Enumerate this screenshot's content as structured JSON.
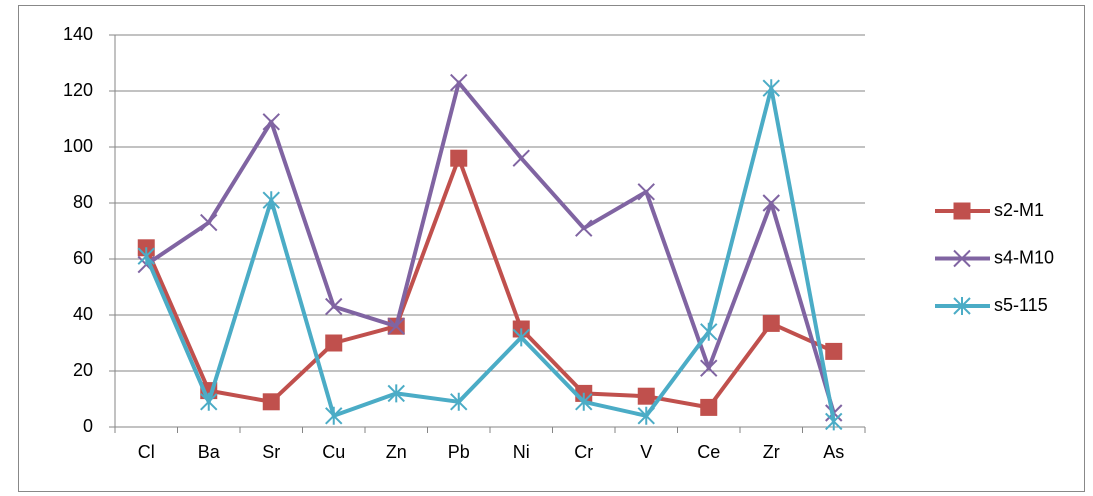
{
  "chart_data": {
    "type": "line",
    "categories": [
      "Cl",
      "Ba",
      "Sr",
      "Cu",
      "Zn",
      "Pb",
      "Ni",
      "Cr",
      "V",
      "Ce",
      "Zr",
      "As"
    ],
    "series": [
      {
        "name": "s2-M1",
        "color": "#c0504d",
        "marker": "square",
        "values": [
          64,
          13,
          9,
          30,
          36,
          96,
          35,
          12,
          11,
          7,
          37,
          27
        ]
      },
      {
        "name": "s4-M10",
        "color": "#8064a2",
        "marker": "x",
        "values": [
          58,
          73,
          109,
          43,
          36,
          123,
          96,
          71,
          84,
          21,
          80,
          5
        ]
      },
      {
        "name": "s5-115",
        "color": "#4bacc6",
        "marker": "star",
        "values": [
          61,
          9,
          81,
          4,
          12,
          9,
          32,
          9,
          4,
          34,
          121,
          2
        ]
      }
    ],
    "ylim": [
      0,
      140
    ],
    "yticks": [
      0,
      20,
      40,
      60,
      80,
      100,
      120,
      140
    ],
    "grid": true,
    "legend": "right"
  }
}
